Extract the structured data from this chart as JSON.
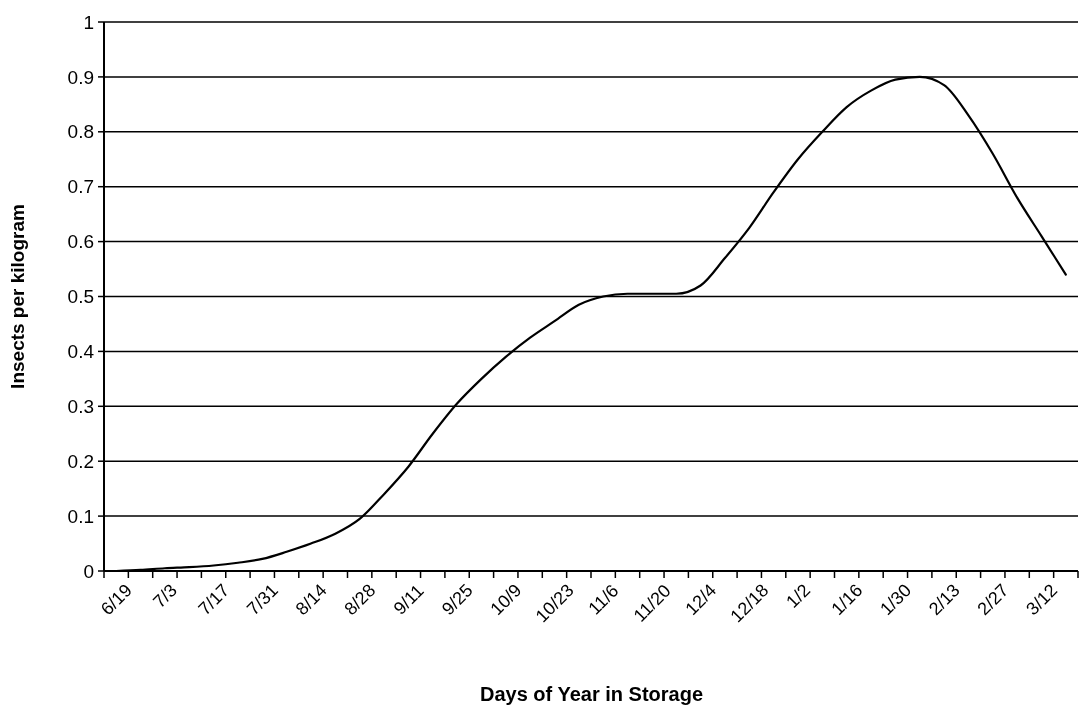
{
  "chart_data": {
    "type": "line",
    "xlabel": "Days of Year in Storage",
    "ylabel": "Insects per kilogram",
    "categories": [
      "6/19",
      null,
      "7/3",
      null,
      "7/17",
      null,
      "7/31",
      null,
      "8/14",
      null,
      "8/28",
      null,
      "9/11",
      null,
      "9/25",
      null,
      "10/9",
      null,
      "10/23",
      null,
      "11/6",
      null,
      "11/20",
      null,
      "12/4",
      null,
      "12/18",
      null,
      "1/2",
      null,
      "1/16",
      null,
      "1/30",
      null,
      "2/13",
      null,
      "2/27",
      null,
      "3/12",
      null
    ],
    "series": [
      {
        "color": "#000000",
        "values": [
          0,
          0.002,
          0.005,
          0.007,
          0.01,
          0.015,
          0.022,
          0.035,
          0.05,
          0.068,
          0.095,
          0.14,
          0.19,
          0.25,
          0.305,
          0.35,
          0.39,
          0.425,
          0.455,
          0.485,
          0.5,
          0.505,
          0.505,
          0.505,
          0.52,
          0.57,
          0.625,
          0.69,
          0.75,
          0.8,
          0.845,
          0.875,
          0.895,
          0.9,
          0.885,
          0.83,
          0.76,
          0.68,
          0.61,
          0.54
        ]
      }
    ],
    "ylim": [
      0,
      1
    ],
    "yticks": [
      0,
      0.1,
      0.2,
      0.3,
      0.4,
      0.5,
      0.6,
      0.7,
      0.8,
      0.9,
      1
    ],
    "grid": "y",
    "marker": "none",
    "line_style": "solid"
  }
}
